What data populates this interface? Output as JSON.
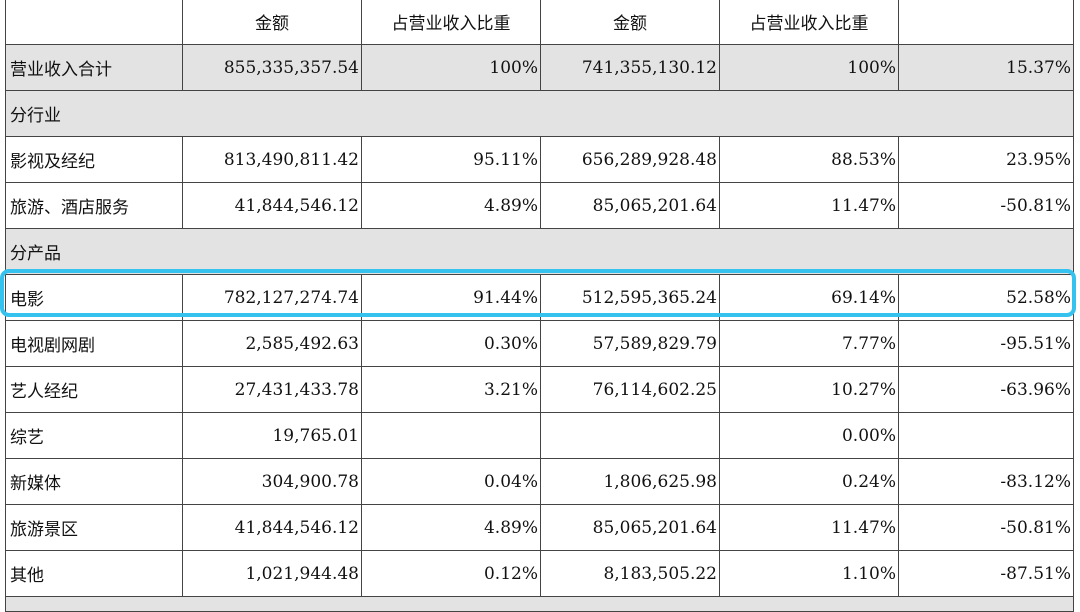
{
  "header": [
    "",
    "金额",
    "占营业收入比重",
    "金额",
    "占营业收入比重",
    ""
  ],
  "rows": [
    {
      "cells": [
        "营业收入合计",
        "855,335,357.54",
        "100%",
        "741,355,130.12",
        "100%",
        "15.37%"
      ]
    },
    {
      "cells": [
        "分行业",
        "",
        "",
        "",
        "",
        ""
      ]
    },
    {
      "cells": [
        "影视及经纪",
        "813,490,811.42",
        "95.11%",
        "656,289,928.48",
        "88.53%",
        "23.95%"
      ]
    },
    {
      "cells": [
        "旅游、酒店服务",
        "41,844,546.12",
        "4.89%",
        "85,065,201.64",
        "11.47%",
        "-50.81%"
      ]
    },
    {
      "cells": [
        "分产品",
        "",
        "",
        "",
        "",
        ""
      ]
    },
    {
      "cells": [
        "电影",
        "782,127,274.74",
        "91.44%",
        "512,595,365.24",
        "69.14%",
        "52.58%"
      ]
    },
    {
      "cells": [
        "电视剧网剧",
        "2,585,492.63",
        "0.30%",
        "57,589,829.79",
        "7.77%",
        "-95.51%"
      ]
    },
    {
      "cells": [
        "艺人经纪",
        "27,431,433.78",
        "3.21%",
        "76,114,602.25",
        "10.27%",
        "-63.96%"
      ]
    },
    {
      "cells": [
        "综艺",
        "19,765.01",
        "",
        "",
        "0.00%",
        ""
      ]
    },
    {
      "cells": [
        "新媒体",
        "304,900.78",
        "0.04%",
        "1,806,625.98",
        "0.24%",
        "-83.12%"
      ]
    },
    {
      "cells": [
        "旅游景区",
        "41,844,546.12",
        "4.89%",
        "85,065,201.64",
        "11.47%",
        "-50.81%"
      ]
    },
    {
      "cells": [
        "其他",
        "1,021,944.48",
        "0.12%",
        "8,183,505.22",
        "1.10%",
        "-87.51%"
      ]
    }
  ],
  "highlight_color": "#35c2ee",
  "shade_color": "#e3e3e3"
}
